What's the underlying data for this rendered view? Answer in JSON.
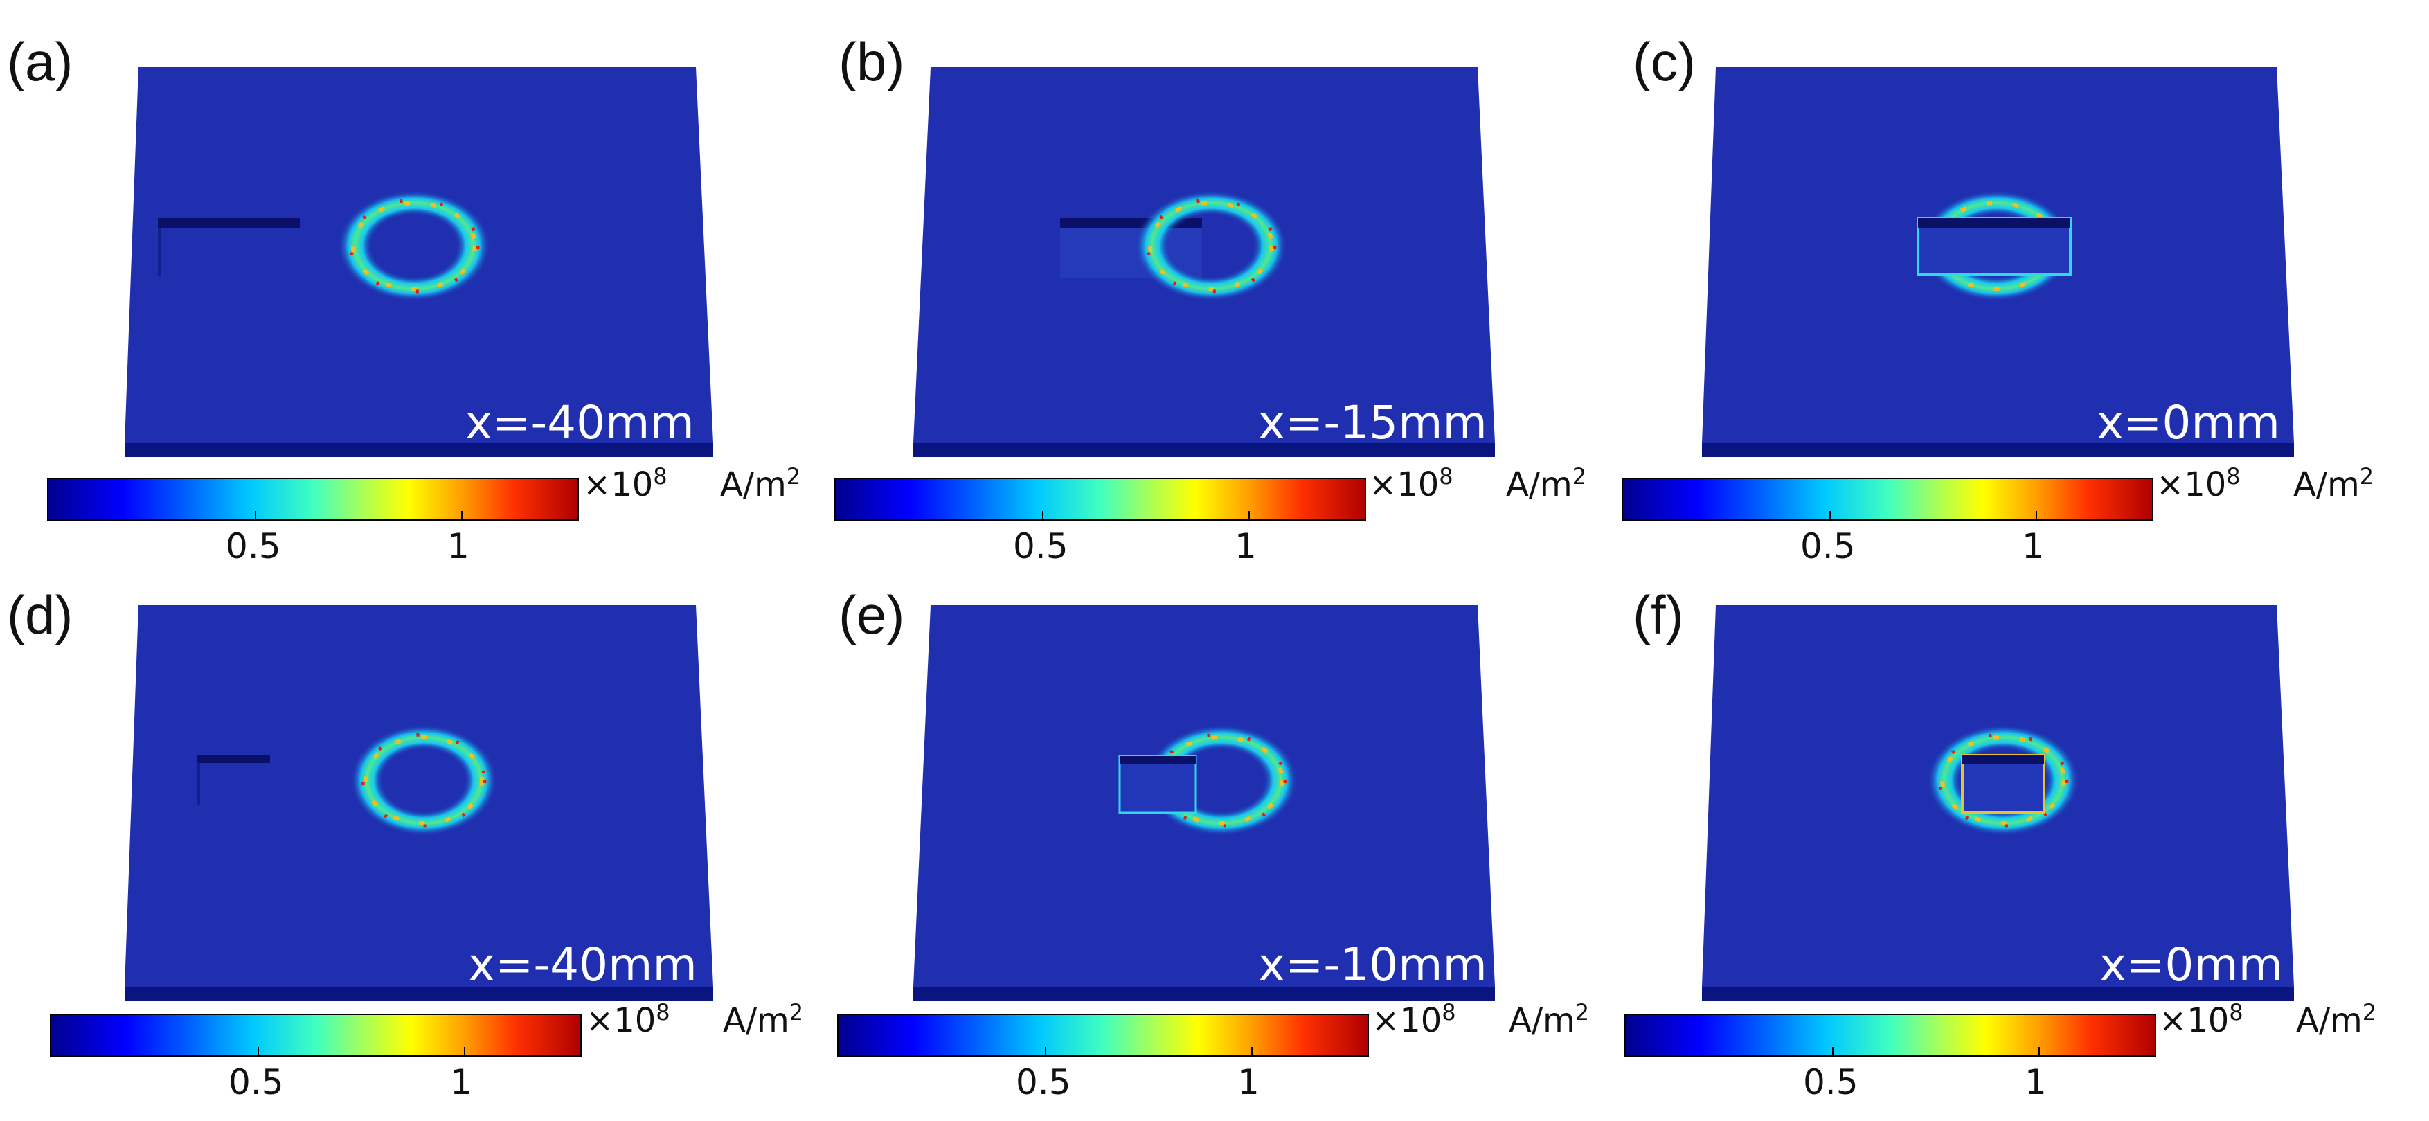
{
  "colorbar": {
    "multiplier_base": "×10",
    "multiplier_exp": "8",
    "unit_base": "A/m",
    "unit_exp": "2",
    "ticks": [
      "0.5",
      "1"
    ],
    "colors": [
      "#00008f",
      "#0000ff",
      "#0060ff",
      "#00c8ff",
      "#40ffc0",
      "#b0ff50",
      "#ffff00",
      "#ffa000",
      "#ff3000",
      "#b00000"
    ]
  },
  "plate_color": "#1f2fb0",
  "panels": [
    {
      "label": "(a)",
      "position_text": "x=-40mm",
      "defect": "bar-left"
    },
    {
      "label": "(b)",
      "position_text": "x=-15mm",
      "defect": "bar-overlap"
    },
    {
      "label": "(c)",
      "position_text": "x=0mm",
      "defect": "bar-center"
    },
    {
      "label": "(d)",
      "position_text": "x=-40mm",
      "defect": "small-left"
    },
    {
      "label": "(e)",
      "position_text": "x=-10mm",
      "defect": "small-overlap"
    },
    {
      "label": "(f)",
      "position_text": "x=0mm",
      "defect": "small-center"
    }
  ]
}
